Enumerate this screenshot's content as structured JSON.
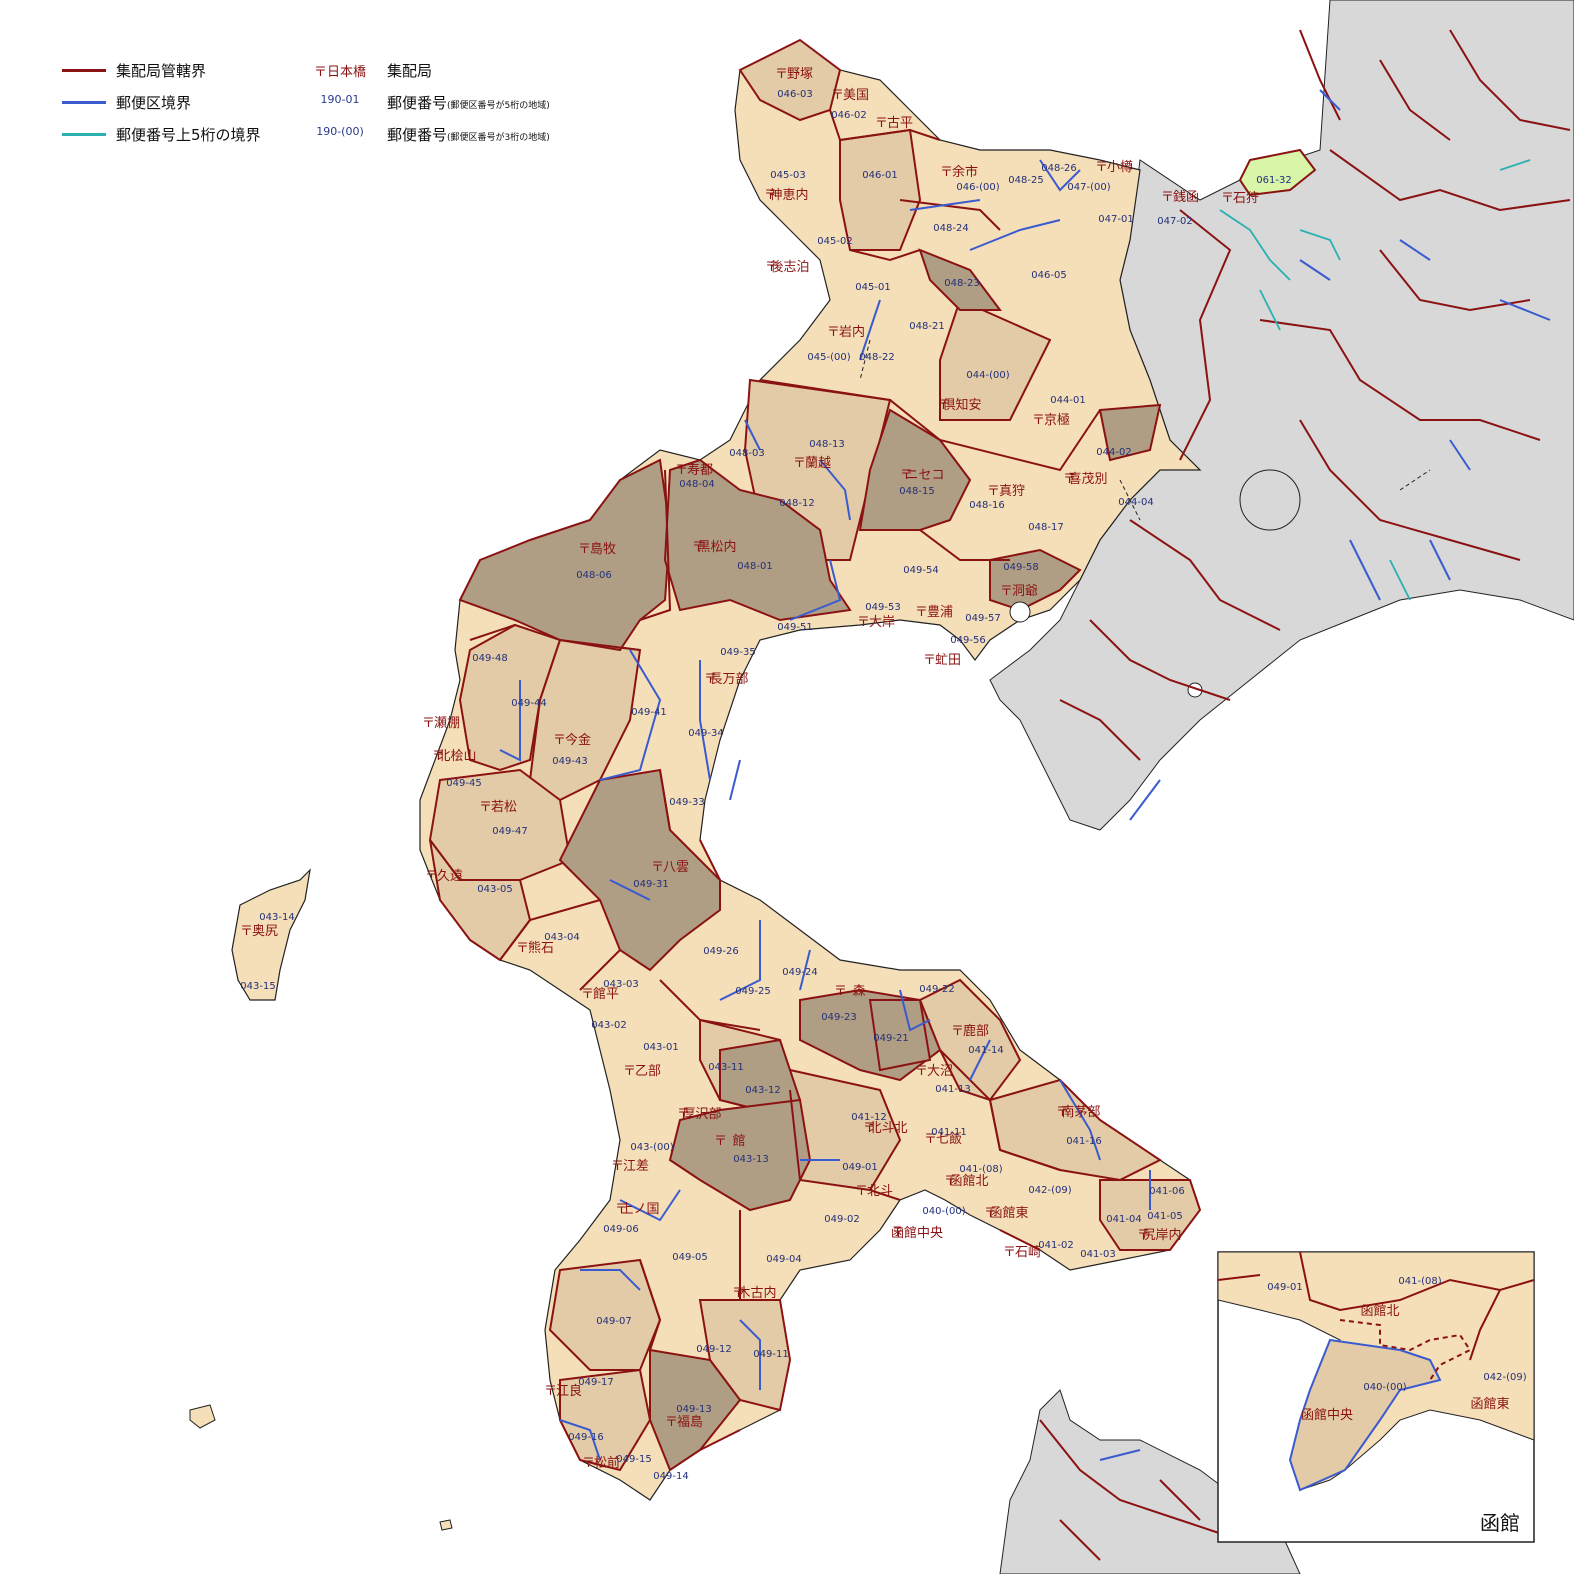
{
  "legend": {
    "items": [
      {
        "label": "集配局管轄界",
        "color": "#8b1212",
        "example": "〒日本橋",
        "meaning": "集配局",
        "note": ""
      },
      {
        "label": "郵便区境界",
        "color": "#3a5bd0",
        "example": "190-01",
        "meaning": "郵便番号",
        "note": "(郵便区番号が5桁の地域)"
      },
      {
        "label": "郵便番号上5桁の境界",
        "color": "#2ab0b0",
        "example": "190-(00)",
        "meaning": "郵便番号",
        "note": "(郵便区番号が3桁の地域)"
      }
    ]
  },
  "colors": {
    "boundary_office": "#8b1212",
    "boundary_postal": "#3a5bd0",
    "boundary_5digit": "#2ab0b0",
    "fill_light": "#f5dfb9",
    "fill_mid": "#e2cba6",
    "fill_dark": "#b09e84",
    "fill_other": "#d8d8d8",
    "fill_highlight": "#d8f5a8",
    "sea": "#ffffff"
  },
  "offices": [
    {
      "name": "野塚"
    },
    {
      "name": "美国"
    },
    {
      "name": "古平"
    },
    {
      "name": "余市"
    },
    {
      "name": "小樽"
    },
    {
      "name": "銭函"
    },
    {
      "name": "石狩"
    },
    {
      "name": "神恵内"
    },
    {
      "name": "後志泊"
    },
    {
      "name": "岩内"
    },
    {
      "name": "倶知安"
    },
    {
      "name": "京極"
    },
    {
      "name": "蘭越"
    },
    {
      "name": "寿都"
    },
    {
      "name": "ニセコ"
    },
    {
      "name": "真狩"
    },
    {
      "name": "喜茂別"
    },
    {
      "name": "島牧"
    },
    {
      "name": "黒松内"
    },
    {
      "name": "洞爺"
    },
    {
      "name": "豊浦"
    },
    {
      "name": "大岸"
    },
    {
      "name": "虻田"
    },
    {
      "name": "長万部"
    },
    {
      "name": "瀬棚"
    },
    {
      "name": "北桧山"
    },
    {
      "name": "今金"
    },
    {
      "name": "若松"
    },
    {
      "name": "八雲"
    },
    {
      "name": "久遠"
    },
    {
      "name": "奥尻"
    },
    {
      "name": "熊石"
    },
    {
      "name": "森"
    },
    {
      "name": "館平"
    },
    {
      "name": "鹿部"
    },
    {
      "name": "乙部"
    },
    {
      "name": "大沼"
    },
    {
      "name": "厚沢部"
    },
    {
      "name": "館"
    },
    {
      "name": "南茅部"
    },
    {
      "name": "北斗北"
    },
    {
      "name": "七飯"
    },
    {
      "name": "江差"
    },
    {
      "name": "函館北"
    },
    {
      "name": "北斗"
    },
    {
      "name": "上ノ国"
    },
    {
      "name": "函館東"
    },
    {
      "name": "函館中央"
    },
    {
      "name": "石崎"
    },
    {
      "name": "尻岸内"
    },
    {
      "name": "木古内"
    },
    {
      "name": "江良"
    },
    {
      "name": "福島"
    },
    {
      "name": "松前"
    }
  ],
  "codes": [
    "046-03",
    "046-02",
    "046-01",
    "045-03",
    "045-02",
    "046-(00)",
    "048-25",
    "048-26",
    "047-(00)",
    "047-01",
    "047-02",
    "061-32",
    "048-24",
    "046-05",
    "048-23",
    "045-01",
    "048-21",
    "045-(00)",
    "048-22",
    "044-(00)",
    "044-01",
    "048-13",
    "048-03",
    "048-04",
    "044-02",
    "048-15",
    "048-16",
    "044-04",
    "048-12",
    "048-17",
    "048-06",
    "048-01",
    "049-54",
    "049-58",
    "049-53",
    "049-57",
    "049-51",
    "049-56",
    "049-35",
    "049-48",
    "049-44",
    "049-41",
    "049-34",
    "049-43",
    "049-45",
    "049-33",
    "049-47",
    "049-31",
    "043-05",
    "043-14",
    "043-04",
    "049-26",
    "049-24",
    "043-15",
    "043-03",
    "049-25",
    "049-22",
    "043-02",
    "049-23",
    "049-21",
    "043-01",
    "041-14",
    "043-11",
    "041-13",
    "043-12",
    "041-12",
    "041-11",
    "043-(00)",
    "041-16",
    "043-13",
    "049-01",
    "041-(08)",
    "042-(09)",
    "041-06",
    "040-(00)",
    "041-05",
    "049-02",
    "041-04",
    "041-02",
    "049-06",
    "041-03",
    "049-05",
    "049-04",
    "049-07",
    "049-12",
    "049-11",
    "049-17",
    "049-13",
    "049-16",
    "049-15",
    "049-14"
  ],
  "inset": {
    "title": "函館",
    "labels": [
      "049-01",
      "041-(08)",
      "函館北",
      "042-(09)",
      "040-(00)",
      "函館中央",
      "函館東"
    ]
  }
}
